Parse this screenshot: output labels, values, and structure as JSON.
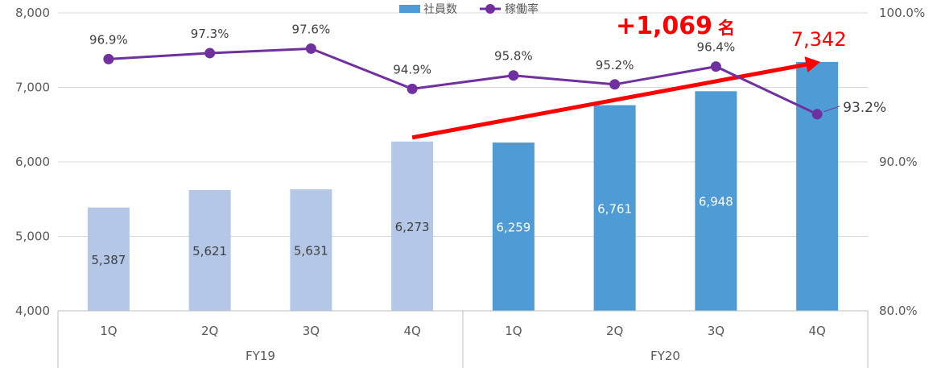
{
  "chart_data": {
    "type": "bar+line",
    "title": "",
    "legend": {
      "position": "top-center",
      "bar_label": "社員数",
      "line_label": "稼働率"
    },
    "categories": [
      "1Q",
      "2Q",
      "3Q",
      "4Q",
      "1Q",
      "2Q",
      "3Q",
      "4Q"
    ],
    "groups": [
      {
        "label": "FY19",
        "from": 0,
        "to": 3
      },
      {
        "label": "FY20",
        "from": 4,
        "to": 7
      }
    ],
    "series": [
      {
        "name": "社員数",
        "type": "bar",
        "axis": "left",
        "values": [
          5387,
          5621,
          5631,
          6273,
          6259,
          6761,
          6948,
          7342
        ],
        "labels": [
          "5,387",
          "5,621",
          "5,631",
          "6,273",
          "6,259",
          "6,761",
          "6,948",
          "7,342"
        ]
      },
      {
        "name": "稼働率",
        "type": "line",
        "axis": "right",
        "values": [
          96.9,
          97.3,
          97.6,
          94.9,
          95.8,
          95.2,
          96.4,
          93.2
        ],
        "labels": [
          "96.9%",
          "97.3%",
          "97.6%",
          "94.9%",
          "95.8%",
          "95.2%",
          "96.4%",
          "93.2%"
        ]
      }
    ],
    "y_left": {
      "min": 4000,
      "max": 8000,
      "ticks": [
        4000,
        5000,
        6000,
        7000,
        8000
      ],
      "tick_labels": [
        "4,000",
        "5,000",
        "6,000",
        "7,000",
        "8,000"
      ]
    },
    "y_right": {
      "min": 80,
      "max": 100,
      "ticks": [
        80,
        90,
        100
      ],
      "tick_labels": [
        "80.0%",
        "90.0%",
        "100.0%"
      ]
    },
    "grid": true,
    "annotation": {
      "text": "+1,069",
      "suffix": "名",
      "arrow_from_index": 3,
      "arrow_to_index": 7
    },
    "colors": {
      "bar_fy19": "#b4c7e7",
      "bar_fy20": "#4f9bd5",
      "line": "#7030a0",
      "annotation": "#ff0000",
      "grid": "#d9d9d9",
      "axis_text": "#595959"
    }
  }
}
